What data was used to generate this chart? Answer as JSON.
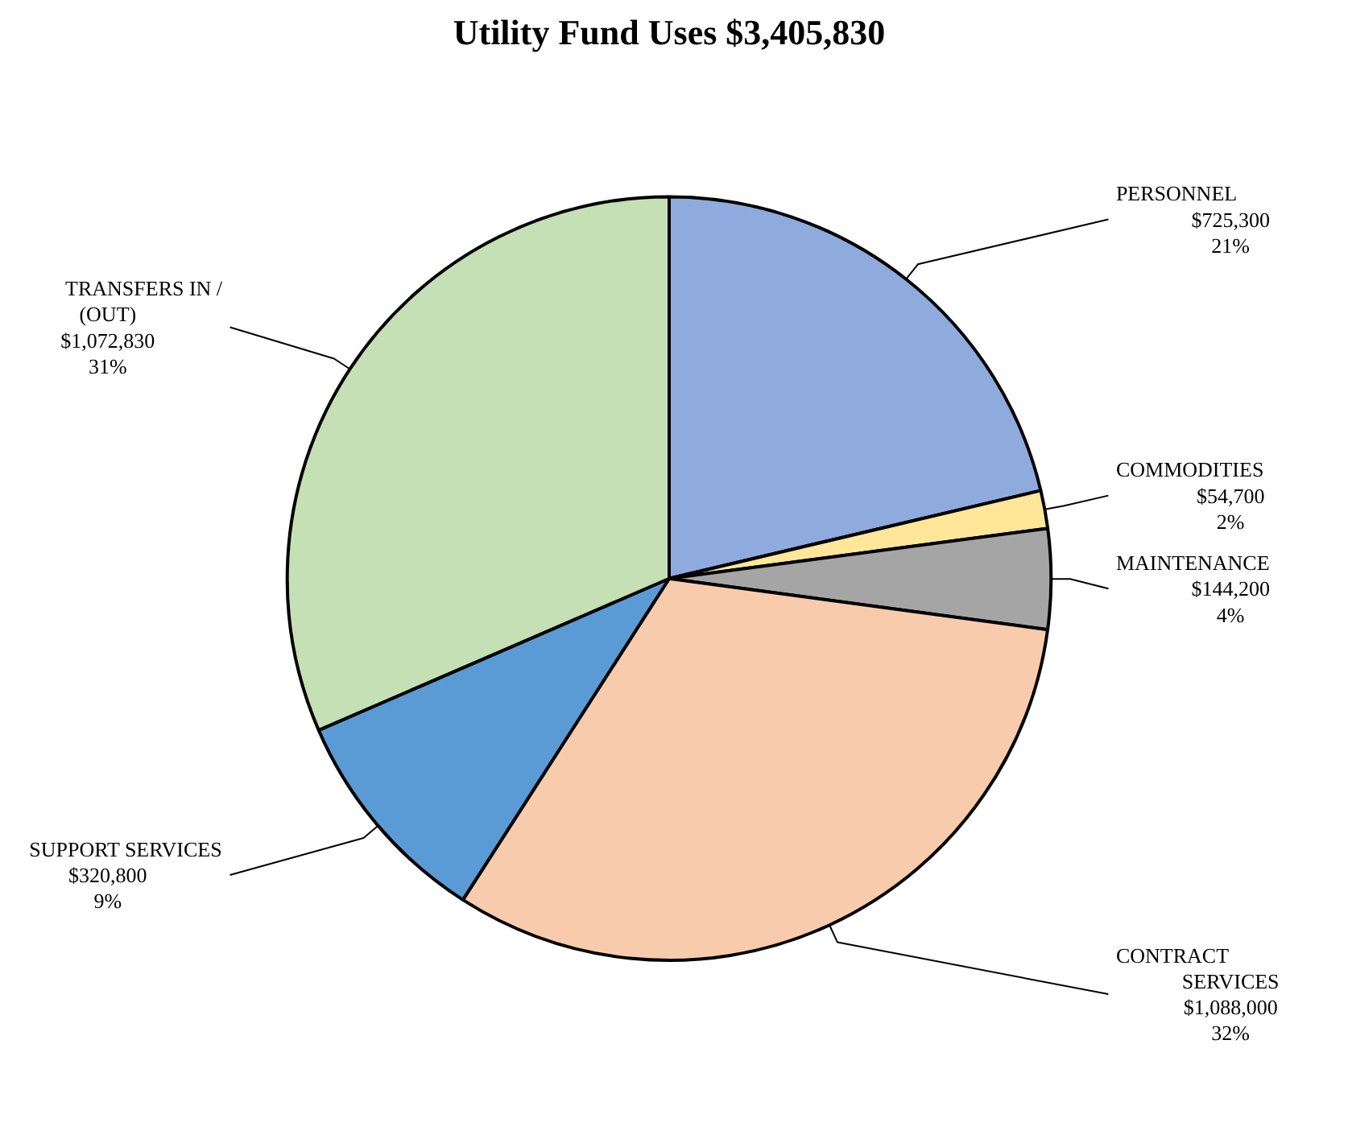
{
  "chart_data": {
    "type": "pie",
    "title": "Utility Fund Uses $3,405,830",
    "categories": [
      "PERSONNEL",
      "COMMODITIES",
      "MAINTENANCE",
      "CONTRACT SERVICES",
      "SUPPORT SERVICES",
      "TRANSFERS IN / (OUT)"
    ],
    "values": [
      725300,
      54700,
      144200,
      1088000,
      320800,
      1072830
    ],
    "colors": [
      "#8faadc",
      "#ffe699",
      "#a5a5a5",
      "#f8cbad",
      "#5b9bd5",
      "#c5e0b4"
    ],
    "value_labels": [
      "$725,300\n21%",
      "$54,700\n2%",
      "$144,200\n4%",
      "$1,088,000\n32%",
      "$320,800\n9%",
      "$1,072,830\n31%"
    ],
    "legend": false
  }
}
